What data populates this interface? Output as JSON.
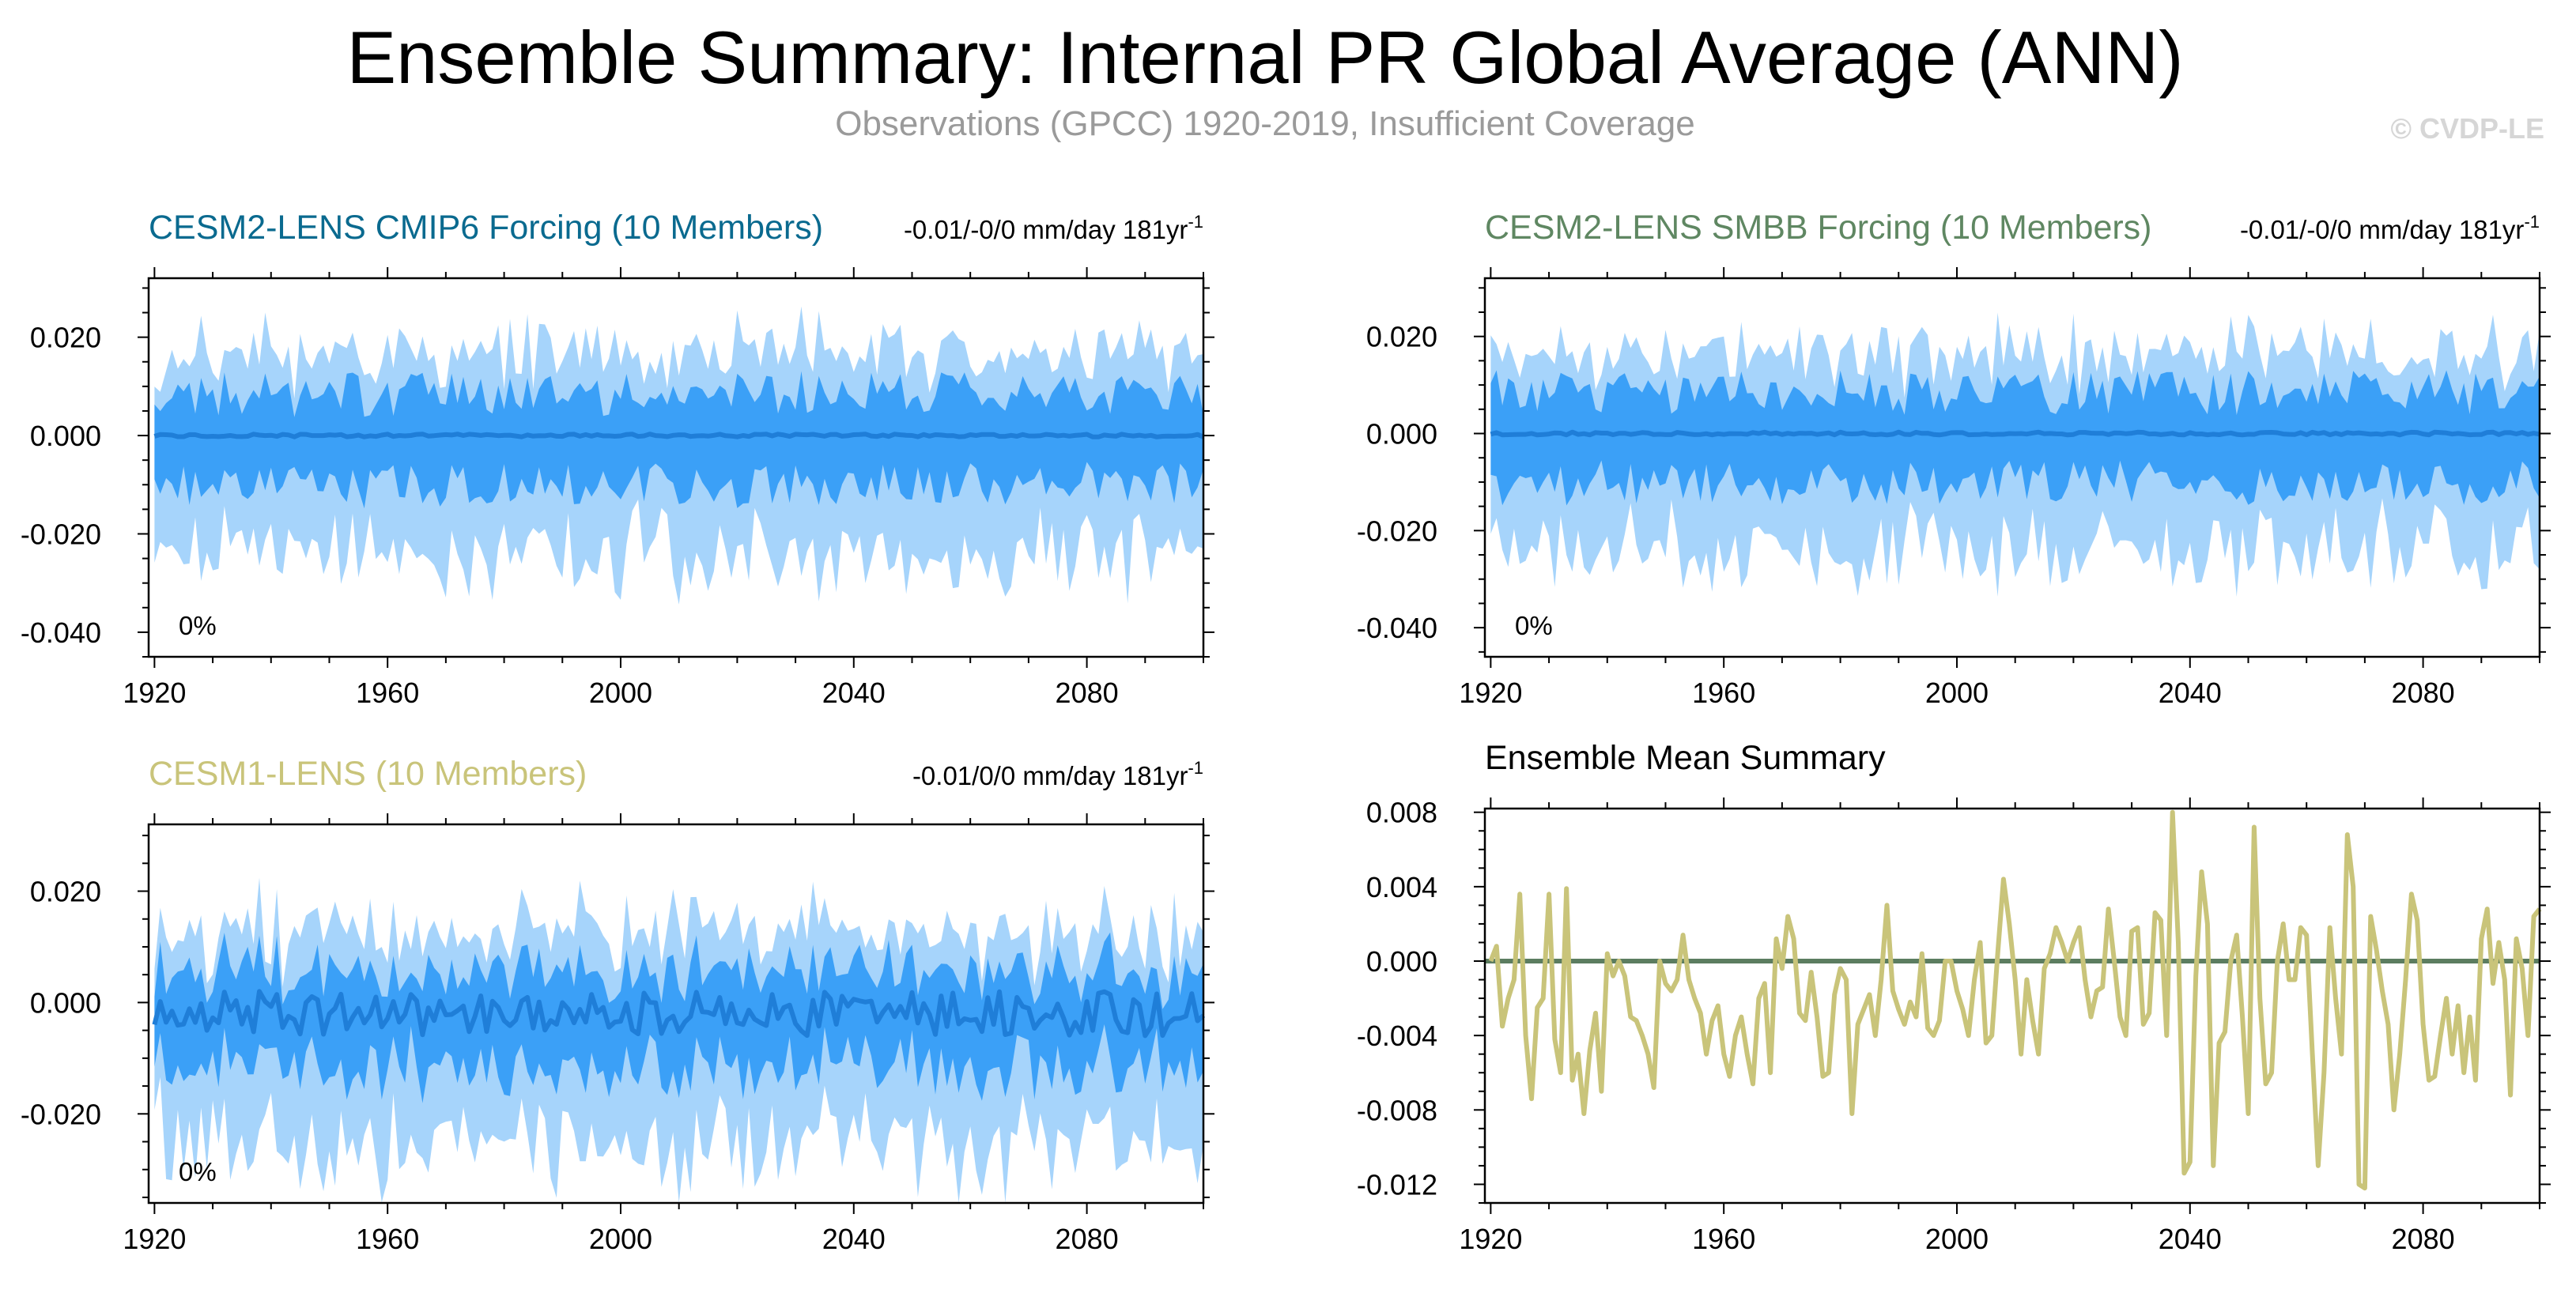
{
  "page": {
    "title": "Ensemble Summary: Internal PR Global Average (ANN)",
    "subtitle": "Observations (GPCC) 1920-2019, Insufficient Coverage",
    "copyright": "© CVDP-LE"
  },
  "colors": {
    "dark_blue": "#0a6a8f",
    "green_gray": "#5f8762",
    "khaki": "#c9c47a",
    "band_outer": "#a6d4fb",
    "band_inner": "#3ba0f7",
    "mean_line": "#1f7ed8",
    "zero_line": "#5c7d60"
  },
  "chart_data": [
    {
      "type": "area",
      "panel": "top-left",
      "title": "CESM2-LENS CMIP6 Forcing (10 Members)",
      "title_color": "#0a6a8f",
      "stat_text": "-0.01/-0/0 mm/day 181yr",
      "stat_sup": "-1",
      "annotation": "0%",
      "xlim": [
        1919,
        2100
      ],
      "xticks": [
        1920,
        1960,
        2000,
        2040,
        2080
      ],
      "ylim": [
        -0.045,
        0.032
      ],
      "yticks": [
        0.02,
        0.0,
        -0.02,
        -0.04
      ],
      "ytick_labels": [
        "0.020",
        "0.000",
        "-0.020",
        "-0.040"
      ],
      "band_seed": 11,
      "inner_amp": 0.01,
      "outer_amp": 0.019,
      "bias": -0.002,
      "mean_wiggle": 0.0003
    },
    {
      "type": "area",
      "panel": "top-right",
      "title": "CESM2-LENS SMBB Forcing (10 Members)",
      "title_color": "#5f8762",
      "stat_text": "-0.01/-0/0 mm/day 181yr",
      "stat_sup": "-1",
      "annotation": "0%",
      "xlim": [
        1919,
        2100
      ],
      "xticks": [
        1920,
        1960,
        2000,
        2040,
        2080
      ],
      "ylim": [
        -0.046,
        0.032
      ],
      "yticks": [
        0.02,
        0.0,
        -0.02,
        -0.04
      ],
      "ytick_labels": [
        "0.020",
        "0.000",
        "-0.020",
        "-0.040"
      ],
      "band_seed": 27,
      "inner_amp": 0.01,
      "outer_amp": 0.019,
      "bias": -0.002,
      "mean_wiggle": 0.0003
    },
    {
      "type": "area",
      "panel": "bottom-left",
      "title": "CESM1-LENS (10 Members)",
      "title_color": "#c9c47a",
      "stat_text": "-0.01/0/0 mm/day 181yr",
      "stat_sup": "-1",
      "annotation": "0%",
      "xlim": [
        1919,
        2100
      ],
      "xticks": [
        1920,
        1960,
        2000,
        2040,
        2080
      ],
      "ylim": [
        -0.036,
        0.032
      ],
      "yticks": [
        0.02,
        0.0,
        -0.02
      ],
      "ytick_labels": [
        "0.020",
        "0.000",
        "-0.020"
      ],
      "band_seed": 43,
      "inner_amp": 0.009,
      "outer_amp": 0.017,
      "bias": -0.003,
      "mean_wiggle": 0.004
    },
    {
      "type": "line",
      "panel": "bottom-right",
      "title": "Ensemble Mean Summary",
      "title_color": "#000000",
      "xlim": [
        1919,
        2100
      ],
      "xticks": [
        1920,
        1960,
        2000,
        2040,
        2080
      ],
      "ylim": [
        -0.013,
        0.0082
      ],
      "yticks": [
        0.008,
        0.004,
        0.0,
        -0.004,
        -0.008,
        -0.012
      ],
      "ytick_labels": [
        "0.008",
        "0.004",
        "0.000",
        "-0.004",
        "-0.008",
        "-0.012"
      ],
      "line_color": "#c9c47a",
      "zero_color": "#5c7d60",
      "points": [
        [
          1920,
          -0.0
        ],
        [
          1921,
          0.0008
        ],
        [
          1922,
          -0.0035
        ],
        [
          1923,
          -0.002
        ],
        [
          1924,
          -0.001
        ],
        [
          1925,
          0.0036
        ],
        [
          1926,
          -0.004
        ],
        [
          1927,
          -0.0074
        ],
        [
          1928,
          -0.0025
        ],
        [
          1929,
          -0.002
        ],
        [
          1930,
          0.0036
        ],
        [
          1931,
          -0.0042
        ],
        [
          1932,
          -0.006
        ],
        [
          1933,
          0.0039
        ],
        [
          1934,
          -0.0064
        ],
        [
          1935,
          -0.005
        ],
        [
          1936,
          -0.0082
        ],
        [
          1937,
          -0.0048
        ],
        [
          1938,
          -0.0028
        ],
        [
          1939,
          -0.007
        ],
        [
          1940,
          0.0004
        ],
        [
          1941,
          -0.0008
        ],
        [
          1942,
          0.0
        ],
        [
          1943,
          -0.0008
        ],
        [
          1944,
          -0.003
        ],
        [
          1945,
          -0.0032
        ],
        [
          1946,
          -0.004
        ],
        [
          1947,
          -0.005
        ],
        [
          1948,
          -0.0068
        ],
        [
          1949,
          0.0
        ],
        [
          1950,
          -0.0012
        ],
        [
          1951,
          -0.0016
        ],
        [
          1952,
          -0.001
        ],
        [
          1953,
          0.0014
        ],
        [
          1954,
          -0.001
        ],
        [
          1955,
          -0.002
        ],
        [
          1956,
          -0.0028
        ],
        [
          1957,
          -0.005
        ],
        [
          1958,
          -0.0032
        ],
        [
          1959,
          -0.0024
        ],
        [
          1960,
          -0.005
        ],
        [
          1961,
          -0.0062
        ],
        [
          1962,
          -0.004
        ],
        [
          1963,
          -0.003
        ],
        [
          1964,
          -0.005
        ],
        [
          1965,
          -0.0066
        ],
        [
          1966,
          -0.002
        ],
        [
          1967,
          -0.0012
        ],
        [
          1968,
          -0.006
        ],
        [
          1969,
          0.0012
        ],
        [
          1970,
          -0.0004
        ],
        [
          1971,
          0.0024
        ],
        [
          1972,
          0.0012
        ],
        [
          1973,
          -0.0028
        ],
        [
          1974,
          -0.0032
        ],
        [
          1975,
          -0.0006
        ],
        [
          1976,
          -0.003
        ],
        [
          1977,
          -0.0062
        ],
        [
          1978,
          -0.006
        ],
        [
          1979,
          -0.0018
        ],
        [
          1980,
          -0.0004
        ],
        [
          1981,
          -0.001
        ],
        [
          1982,
          -0.0082
        ],
        [
          1983,
          -0.0034
        ],
        [
          1984,
          -0.0026
        ],
        [
          1985,
          -0.0018
        ],
        [
          1986,
          -0.004
        ],
        [
          1987,
          -0.001
        ],
        [
          1988,
          0.003
        ],
        [
          1989,
          -0.0016
        ],
        [
          1990,
          -0.0026
        ],
        [
          1991,
          -0.0034
        ],
        [
          1992,
          -0.0022
        ],
        [
          1993,
          -0.003
        ],
        [
          1994,
          0.0004
        ],
        [
          1995,
          -0.0036
        ],
        [
          1996,
          -0.004
        ],
        [
          1997,
          -0.0032
        ],
        [
          1998,
          0.0
        ],
        [
          1999,
          0.0
        ],
        [
          2000,
          -0.0016
        ],
        [
          2001,
          -0.0026
        ],
        [
          2002,
          -0.004
        ],
        [
          2003,
          -0.001
        ],
        [
          2004,
          0.001
        ],
        [
          2005,
          -0.0044
        ],
        [
          2006,
          -0.004
        ],
        [
          2007,
          0.0004
        ],
        [
          2008,
          0.0044
        ],
        [
          2009,
          0.002
        ],
        [
          2010,
          -0.001
        ],
        [
          2011,
          -0.005
        ],
        [
          2012,
          -0.001
        ],
        [
          2013,
          -0.0032
        ],
        [
          2014,
          -0.005
        ],
        [
          2015,
          -0.0004
        ],
        [
          2016,
          0.0004
        ],
        [
          2017,
          0.0018
        ],
        [
          2018,
          0.001
        ],
        [
          2019,
          0.0
        ],
        [
          2020,
          0.001
        ],
        [
          2021,
          0.0018
        ],
        [
          2022,
          -0.001
        ],
        [
          2023,
          -0.003
        ],
        [
          2024,
          -0.0016
        ],
        [
          2025,
          -0.0014
        ],
        [
          2026,
          0.0028
        ],
        [
          2027,
          0.0
        ],
        [
          2028,
          -0.003
        ],
        [
          2029,
          -0.004
        ],
        [
          2030,
          0.0016
        ],
        [
          2031,
          0.0018
        ],
        [
          2032,
          -0.0034
        ],
        [
          2033,
          -0.0028
        ],
        [
          2034,
          0.0026
        ],
        [
          2035,
          0.0022
        ],
        [
          2036,
          -0.004
        ],
        [
          2037,
          0.008
        ],
        [
          2038,
          0.001
        ],
        [
          2039,
          -0.0114
        ],
        [
          2040,
          -0.0108
        ],
        [
          2041,
          -0.0008
        ],
        [
          2042,
          0.0048
        ],
        [
          2043,
          0.002
        ],
        [
          2044,
          -0.011
        ],
        [
          2045,
          -0.0044
        ],
        [
          2046,
          -0.0038
        ],
        [
          2047,
          0.0
        ],
        [
          2048,
          0.0014
        ],
        [
          2049,
          -0.003
        ],
        [
          2050,
          -0.0082
        ],
        [
          2051,
          0.0072
        ],
        [
          2052,
          -0.002
        ],
        [
          2053,
          -0.0066
        ],
        [
          2054,
          -0.006
        ],
        [
          2055,
          0.0
        ],
        [
          2056,
          0.002
        ],
        [
          2057,
          -0.001
        ],
        [
          2058,
          -0.001
        ],
        [
          2059,
          0.0018
        ],
        [
          2060,
          0.0014
        ],
        [
          2061,
          -0.005
        ],
        [
          2062,
          -0.011
        ],
        [
          2063,
          -0.006
        ],
        [
          2064,
          0.0018
        ],
        [
          2065,
          -0.002
        ],
        [
          2066,
          -0.005
        ],
        [
          2067,
          0.0068
        ],
        [
          2068,
          0.004
        ],
        [
          2069,
          -0.012
        ],
        [
          2070,
          -0.0122
        ],
        [
          2071,
          0.0024
        ],
        [
          2072,
          0.0006
        ],
        [
          2073,
          -0.0016
        ],
        [
          2074,
          -0.0034
        ],
        [
          2075,
          -0.008
        ],
        [
          2076,
          -0.005
        ],
        [
          2077,
          -0.001
        ],
        [
          2078,
          0.0036
        ],
        [
          2079,
          0.0022
        ],
        [
          2080,
          -0.0034
        ],
        [
          2081,
          -0.0064
        ],
        [
          2082,
          -0.0062
        ],
        [
          2083,
          -0.004
        ],
        [
          2084,
          -0.002
        ],
        [
          2085,
          -0.005
        ],
        [
          2086,
          -0.0024
        ],
        [
          2087,
          -0.006
        ],
        [
          2088,
          -0.003
        ],
        [
          2089,
          -0.0064
        ],
        [
          2090,
          0.0012
        ],
        [
          2091,
          0.0028
        ],
        [
          2092,
          -0.0012
        ],
        [
          2093,
          0.001
        ],
        [
          2094,
          -0.001
        ],
        [
          2095,
          -0.0072
        ],
        [
          2096,
          0.0012
        ],
        [
          2097,
          -0.0004
        ],
        [
          2098,
          -0.004
        ],
        [
          2099,
          0.0024
        ],
        [
          2100,
          0.0028
        ]
      ]
    }
  ]
}
